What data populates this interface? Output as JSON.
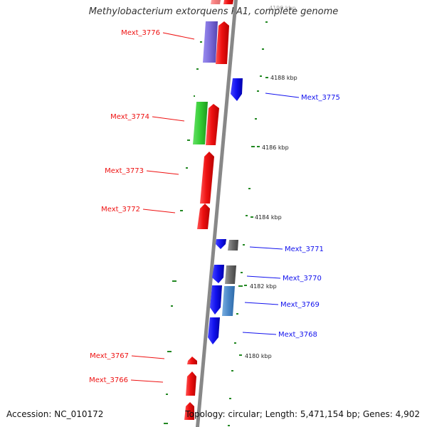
{
  "title": "Methylobacterium extorquens PA1, complete genome",
  "accession_text": "Accession: NC_010172",
  "summary_text": "Topology: circular; Length: 5,471,154 bp; Genes: 4,902",
  "colors": {
    "reverse_gene": "#ee1111",
    "forward_gene": "#1111ee",
    "gc_tick": "#228822",
    "backbone": "#888888",
    "purple_feature": "#7a6ad8",
    "green_feature": "#33cc33",
    "grey_feature": "#666666",
    "steel_feature": "#4a88c8"
  },
  "kbp_markers": [
    "4188 kbp",
    "4186 kbp",
    "4184 kbp",
    "4182 kbp",
    "4180 kbp"
  ],
  "top_partial_marker": "4190 kbp",
  "left_labels": [
    "Mext_3776",
    "Mext_3774",
    "Mext_3773",
    "Mext_3772",
    "Mext_3767",
    "Mext_3766"
  ],
  "right_labels": [
    "Mext_3775",
    "Mext_3771",
    "Mext_3770",
    "Mext_3769",
    "Mext_3768"
  ]
}
